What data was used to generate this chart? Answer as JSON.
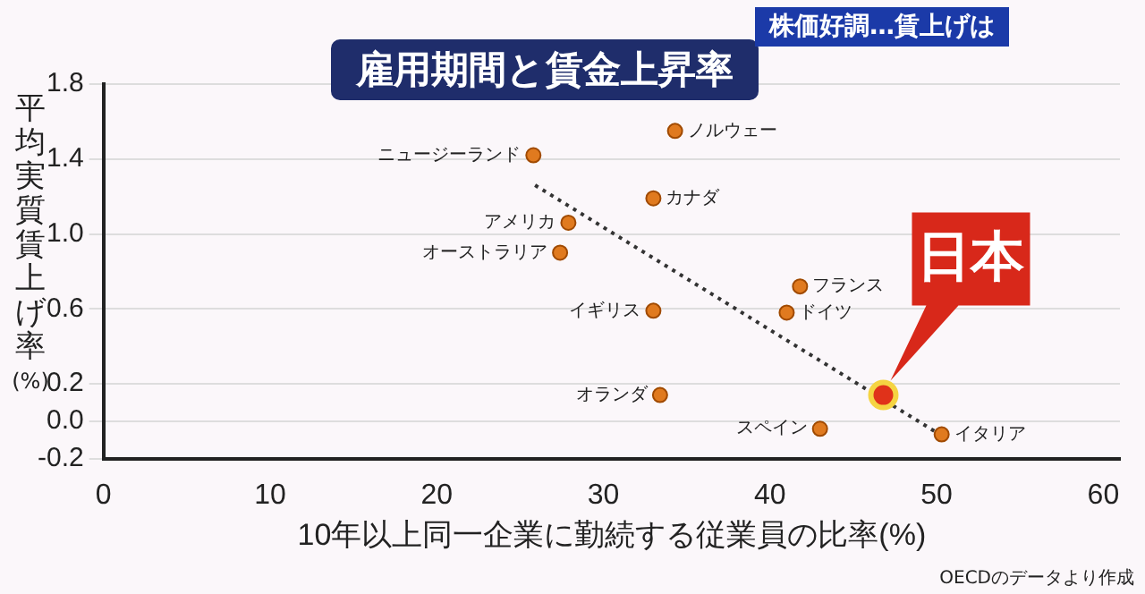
{
  "chart_data": {
    "type": "scatter",
    "title": "雇用期間と賃金上昇率",
    "xlabel": "10年以上同一企業に勤続する従業員の比率(%)",
    "ylabel": "平均実質賃上げ率(%)",
    "xlim": [
      0,
      61
    ],
    "xticks": [
      0,
      10,
      20,
      30,
      40,
      50,
      60
    ],
    "ylim": [
      -0.2,
      1.8
    ],
    "yticks": [
      -0.2,
      {
        "value": 0,
        "label": "0.0"
      },
      0.2,
      0.6,
      {
        "value": 1,
        "label": "1.0"
      },
      1.4,
      1.8
    ],
    "grid": "y",
    "legend": false,
    "marker": "circle",
    "series": [
      {
        "name": "ニュージーランド",
        "color": "#e07a1f",
        "x": [
          25.8
        ],
        "values": [
          1.42
        ]
      },
      {
        "name": "ノルウェー",
        "color": "#e07a1f",
        "x": [
          34.3
        ],
        "values": [
          1.55
        ]
      },
      {
        "name": "カナダ",
        "color": "#e07a1f",
        "x": [
          33.0
        ],
        "values": [
          1.19
        ]
      },
      {
        "name": "アメリカ",
        "color": "#e07a1f",
        "x": [
          27.9
        ],
        "values": [
          1.06
        ]
      },
      {
        "name": "オーストラリア",
        "color": "#e07a1f",
        "x": [
          27.4
        ],
        "values": [
          0.9
        ]
      },
      {
        "name": "フランス",
        "color": "#e07a1f",
        "x": [
          41.8
        ],
        "values": [
          0.72
        ]
      },
      {
        "name": "ドイツ",
        "color": "#e07a1f",
        "x": [
          41.0
        ],
        "values": [
          0.58
        ]
      },
      {
        "name": "イギリス",
        "color": "#e07a1f",
        "x": [
          33.0
        ],
        "values": [
          0.59
        ]
      },
      {
        "name": "オランダ",
        "color": "#e07a1f",
        "x": [
          33.4
        ],
        "values": [
          0.14
        ]
      },
      {
        "name": "スペイン",
        "color": "#e07a1f",
        "x": [
          43.0
        ],
        "values": [
          -0.04
        ]
      },
      {
        "name": "イタリア",
        "color": "#e07a1f",
        "x": [
          50.3
        ],
        "values": [
          -0.07
        ]
      },
      {
        "color": "#e0321a",
        "x": [
          46.8
        ],
        "values": [
          0.14
        ]
      },
      {
        "type": "line",
        "color": "#333333",
        "line_style": "dotted",
        "marker": "none",
        "x": [
          25.9,
          50.0
        ],
        "values": [
          1.26,
          -0.06
        ]
      }
    ],
    "annotations": [
      {
        "text": "日本",
        "x": 46.8,
        "y": 0.14
      },
      "株価好調…賃上げは",
      "OECDのデータより作成"
    ]
  }
}
